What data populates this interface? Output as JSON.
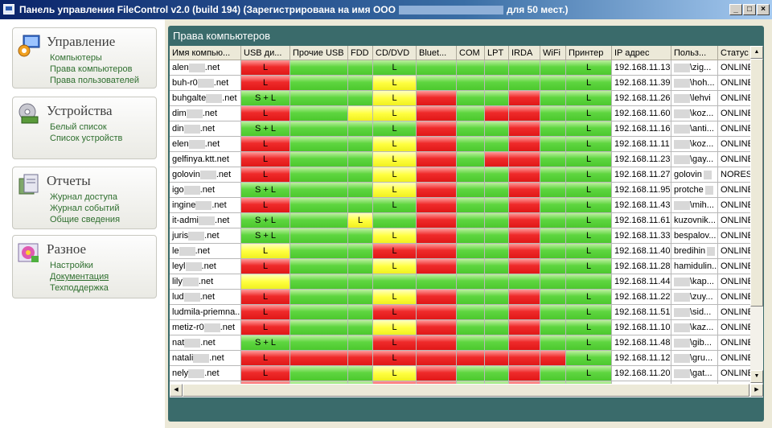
{
  "window": {
    "title_left": "Панель управления FileControl v2.0 (build 194) (Зарегистрирована на имя ООО",
    "title_right": "для 50 мест.)"
  },
  "sidebar": [
    {
      "key": "manage",
      "title": "Управление",
      "icon": "monitor-gear-icon",
      "links": [
        {
          "label": "Компьютеры",
          "u": false
        },
        {
          "label": "Права компьютеров",
          "u": false
        },
        {
          "label": "Права пользователей",
          "u": false
        }
      ]
    },
    {
      "key": "devices",
      "title": "Устройства",
      "icon": "disk-drive-icon",
      "links": [
        {
          "label": "Белый список",
          "u": false
        },
        {
          "label": "Список устройств",
          "u": false
        }
      ]
    },
    {
      "key": "reports",
      "title": "Отчеты",
      "icon": "folder-report-icon",
      "links": [
        {
          "label": "Журнал доступа",
          "u": false
        },
        {
          "label": "Журнал событий",
          "u": false
        },
        {
          "label": "Общие сведения",
          "u": false
        }
      ]
    },
    {
      "key": "misc",
      "title": "Разное",
      "icon": "settings-flower-icon",
      "links": [
        {
          "label": "Настройки",
          "u": false
        },
        {
          "label": "Документация",
          "u": true
        },
        {
          "label": "Техподдержка",
          "u": false
        }
      ]
    }
  ],
  "tab": {
    "label": "Права компьютеров"
  },
  "colors": {
    "allowed": "#4cc82e",
    "denied": "#e01818",
    "readonly": "#f0f020"
  },
  "columns": [
    "Имя компью...",
    "USB ди...",
    "Прочие USB",
    "FDD",
    "CD/DVD",
    "Bluet...",
    "COM",
    "LPT",
    "IRDA",
    "WiFi",
    "Принтер",
    "IP адрес",
    "Польз...",
    "Статус"
  ],
  "rows": [
    {
      "name": "alen",
      "suffix": ".net",
      "usb": [
        "r",
        "L"
      ],
      "ousb": [
        "g",
        ""
      ],
      "fdd": [
        "g",
        ""
      ],
      "cd": [
        "g",
        "L"
      ],
      "bt": [
        "g",
        ""
      ],
      "com": [
        "g",
        ""
      ],
      "lpt": [
        "g",
        ""
      ],
      "irda": [
        "g",
        ""
      ],
      "wifi": [
        "g",
        ""
      ],
      "prn": [
        "g",
        "L"
      ],
      "ip": "192.168.11.13",
      "user": "\\zig...",
      "blur_user": true,
      "status": "ONLINE"
    },
    {
      "name": "buh-r0",
      "suffix": ".net",
      "usb": [
        "r",
        "L"
      ],
      "ousb": [
        "g",
        ""
      ],
      "fdd": [
        "g",
        ""
      ],
      "cd": [
        "y",
        "L"
      ],
      "bt": [
        "g",
        ""
      ],
      "com": [
        "g",
        ""
      ],
      "lpt": [
        "g",
        ""
      ],
      "irda": [
        "g",
        ""
      ],
      "wifi": [
        "g",
        ""
      ],
      "prn": [
        "g",
        "L"
      ],
      "ip": "192.168.11.39",
      "user": "\\hoh...",
      "blur_user": true,
      "status": "ONLINE"
    },
    {
      "name": "buhgalte",
      "suffix": ".net",
      "usb": [
        "g",
        "S + L"
      ],
      "ousb": [
        "g",
        ""
      ],
      "fdd": [
        "g",
        ""
      ],
      "cd": [
        "y",
        "L"
      ],
      "bt": [
        "r",
        ""
      ],
      "com": [
        "g",
        ""
      ],
      "lpt": [
        "g",
        ""
      ],
      "irda": [
        "r",
        ""
      ],
      "wifi": [
        "g",
        ""
      ],
      "prn": [
        "g",
        "L"
      ],
      "ip": "192.168.11.26",
      "user": "\\lehvi",
      "blur_user": true,
      "status": "ONLINE"
    },
    {
      "name": "dim",
      "suffix": ".net",
      "usb": [
        "r",
        "L"
      ],
      "ousb": [
        "g",
        ""
      ],
      "fdd": [
        "y",
        ""
      ],
      "cd": [
        "y",
        "L"
      ],
      "bt": [
        "r",
        ""
      ],
      "com": [
        "g",
        ""
      ],
      "lpt": [
        "r",
        ""
      ],
      "irda": [
        "r",
        ""
      ],
      "wifi": [
        "g",
        ""
      ],
      "prn": [
        "g",
        "L"
      ],
      "ip": "192.168.11.60",
      "user": "\\koz...",
      "blur_user": true,
      "status": "ONLINE"
    },
    {
      "name": "din",
      "suffix": ".net",
      "usb": [
        "g",
        "S + L"
      ],
      "ousb": [
        "g",
        ""
      ],
      "fdd": [
        "g",
        ""
      ],
      "cd": [
        "g",
        "L"
      ],
      "bt": [
        "r",
        ""
      ],
      "com": [
        "g",
        ""
      ],
      "lpt": [
        "g",
        ""
      ],
      "irda": [
        "r",
        ""
      ],
      "wifi": [
        "g",
        ""
      ],
      "prn": [
        "g",
        "L"
      ],
      "ip": "192.168.11.16",
      "user": "\\anti...",
      "blur_user": true,
      "status": "ONLINE"
    },
    {
      "name": "elen",
      "suffix": ".net",
      "usb": [
        "r",
        "L"
      ],
      "ousb": [
        "g",
        ""
      ],
      "fdd": [
        "g",
        ""
      ],
      "cd": [
        "y",
        "L"
      ],
      "bt": [
        "r",
        ""
      ],
      "com": [
        "g",
        ""
      ],
      "lpt": [
        "g",
        ""
      ],
      "irda": [
        "r",
        ""
      ],
      "wifi": [
        "g",
        ""
      ],
      "prn": [
        "g",
        "L"
      ],
      "ip": "192.168.11.11",
      "user": "\\koz...",
      "blur_user": true,
      "status": "ONLINE"
    },
    {
      "name": "gelfinya.ktt.net",
      "suffix": "",
      "usb": [
        "r",
        "L"
      ],
      "ousb": [
        "g",
        ""
      ],
      "fdd": [
        "g",
        ""
      ],
      "cd": [
        "y",
        "L"
      ],
      "bt": [
        "r",
        ""
      ],
      "com": [
        "g",
        ""
      ],
      "lpt": [
        "r",
        ""
      ],
      "irda": [
        "r",
        ""
      ],
      "wifi": [
        "g",
        ""
      ],
      "prn": [
        "g",
        "L"
      ],
      "ip": "192.168.11.23",
      "user": "\\gay...",
      "blur_user": true,
      "status": "ONLINE"
    },
    {
      "name": "golovin",
      "suffix": ".net",
      "usb": [
        "r",
        "L"
      ],
      "ousb": [
        "g",
        ""
      ],
      "fdd": [
        "g",
        ""
      ],
      "cd": [
        "y",
        "L"
      ],
      "bt": [
        "r",
        ""
      ],
      "com": [
        "g",
        ""
      ],
      "lpt": [
        "g",
        ""
      ],
      "irda": [
        "r",
        ""
      ],
      "wifi": [
        "g",
        ""
      ],
      "prn": [
        "g",
        "L"
      ],
      "ip": "192.168.11.27",
      "user": "golovin",
      "blur_user": false,
      "status": "NORESP"
    },
    {
      "name": "igo",
      "suffix": ".net",
      "usb": [
        "g",
        "S + L"
      ],
      "ousb": [
        "g",
        ""
      ],
      "fdd": [
        "g",
        ""
      ],
      "cd": [
        "y",
        "L"
      ],
      "bt": [
        "r",
        ""
      ],
      "com": [
        "g",
        ""
      ],
      "lpt": [
        "g",
        ""
      ],
      "irda": [
        "r",
        ""
      ],
      "wifi": [
        "g",
        ""
      ],
      "prn": [
        "g",
        "L"
      ],
      "ip": "192.168.11.95",
      "user": "protche",
      "blur_user": false,
      "status": "ONLINE"
    },
    {
      "name": "ingine",
      "suffix": ".net",
      "usb": [
        "r",
        "L"
      ],
      "ousb": [
        "g",
        ""
      ],
      "fdd": [
        "g",
        ""
      ],
      "cd": [
        "g",
        "L"
      ],
      "bt": [
        "r",
        ""
      ],
      "com": [
        "g",
        ""
      ],
      "lpt": [
        "g",
        ""
      ],
      "irda": [
        "r",
        ""
      ],
      "wifi": [
        "g",
        ""
      ],
      "prn": [
        "g",
        "L"
      ],
      "ip": "192.168.11.43",
      "user": "\\mih...",
      "blur_user": true,
      "status": "ONLINE"
    },
    {
      "name": "it-admi",
      "suffix": ".net",
      "usb": [
        "g",
        "S + L"
      ],
      "ousb": [
        "g",
        ""
      ],
      "fdd": [
        "y",
        "L"
      ],
      "cd": [
        "g",
        ""
      ],
      "bt": [
        "r",
        ""
      ],
      "com": [
        "g",
        ""
      ],
      "lpt": [
        "g",
        ""
      ],
      "irda": [
        "r",
        ""
      ],
      "wifi": [
        "g",
        ""
      ],
      "prn": [
        "g",
        "L"
      ],
      "ip": "192.168.11.61",
      "user": "kuzovnik...",
      "blur_user": false,
      "status": "ONLINE"
    },
    {
      "name": "juris",
      "suffix": ".net",
      "usb": [
        "g",
        "S + L"
      ],
      "ousb": [
        "g",
        ""
      ],
      "fdd": [
        "g",
        ""
      ],
      "cd": [
        "y",
        "L"
      ],
      "bt": [
        "r",
        ""
      ],
      "com": [
        "g",
        ""
      ],
      "lpt": [
        "g",
        ""
      ],
      "irda": [
        "r",
        ""
      ],
      "wifi": [
        "g",
        ""
      ],
      "prn": [
        "g",
        "L"
      ],
      "ip": "192.168.11.33",
      "user": "bespalov...",
      "blur_user": false,
      "status": "ONLINE"
    },
    {
      "name": "le",
      "suffix": ".net",
      "usb": [
        "y",
        "L"
      ],
      "ousb": [
        "g",
        ""
      ],
      "fdd": [
        "g",
        ""
      ],
      "cd": [
        "r",
        "L"
      ],
      "bt": [
        "r",
        ""
      ],
      "com": [
        "g",
        ""
      ],
      "lpt": [
        "g",
        ""
      ],
      "irda": [
        "r",
        ""
      ],
      "wifi": [
        "g",
        ""
      ],
      "prn": [
        "g",
        "L"
      ],
      "ip": "192.168.11.40",
      "user": "bredihin",
      "blur_user": false,
      "status": "ONLINE"
    },
    {
      "name": "leyl",
      "suffix": ".net",
      "usb": [
        "r",
        "L"
      ],
      "ousb": [
        "g",
        ""
      ],
      "fdd": [
        "g",
        ""
      ],
      "cd": [
        "y",
        "L"
      ],
      "bt": [
        "r",
        ""
      ],
      "com": [
        "g",
        ""
      ],
      "lpt": [
        "g",
        ""
      ],
      "irda": [
        "r",
        ""
      ],
      "wifi": [
        "g",
        ""
      ],
      "prn": [
        "g",
        "L"
      ],
      "ip": "192.168.11.28",
      "user": "hamidulin...",
      "blur_user": false,
      "status": "ONLINE"
    },
    {
      "name": "lily",
      "suffix": ".net",
      "usb": [
        "y",
        ""
      ],
      "ousb": [
        "g",
        ""
      ],
      "fdd": [
        "g",
        ""
      ],
      "cd": [
        "g",
        ""
      ],
      "bt": [
        "g",
        ""
      ],
      "com": [
        "g",
        ""
      ],
      "lpt": [
        "g",
        ""
      ],
      "irda": [
        "g",
        ""
      ],
      "wifi": [
        "g",
        ""
      ],
      "prn": [
        "g",
        ""
      ],
      "ip": "192.168.11.44",
      "user": "\\kap...",
      "blur_user": true,
      "status": "ONLINE"
    },
    {
      "name": "lud",
      "suffix": ".net",
      "usb": [
        "r",
        "L"
      ],
      "ousb": [
        "g",
        ""
      ],
      "fdd": [
        "g",
        ""
      ],
      "cd": [
        "y",
        "L"
      ],
      "bt": [
        "r",
        ""
      ],
      "com": [
        "g",
        ""
      ],
      "lpt": [
        "g",
        ""
      ],
      "irda": [
        "r",
        ""
      ],
      "wifi": [
        "g",
        ""
      ],
      "prn": [
        "g",
        "L"
      ],
      "ip": "192.168.11.22",
      "user": "\\zuy...",
      "blur_user": true,
      "status": "ONLINE"
    },
    {
      "name": "ludmila-priemna...",
      "suffix": "",
      "usb": [
        "r",
        "L"
      ],
      "ousb": [
        "g",
        ""
      ],
      "fdd": [
        "g",
        ""
      ],
      "cd": [
        "r",
        "L"
      ],
      "bt": [
        "r",
        ""
      ],
      "com": [
        "g",
        ""
      ],
      "lpt": [
        "g",
        ""
      ],
      "irda": [
        "r",
        ""
      ],
      "wifi": [
        "g",
        ""
      ],
      "prn": [
        "g",
        "L"
      ],
      "ip": "192.168.11.51",
      "user": "\\sid...",
      "blur_user": true,
      "status": "ONLINE"
    },
    {
      "name": "metiz-r0",
      "suffix": ".net",
      "usb": [
        "r",
        "L"
      ],
      "ousb": [
        "g",
        ""
      ],
      "fdd": [
        "g",
        ""
      ],
      "cd": [
        "y",
        "L"
      ],
      "bt": [
        "r",
        ""
      ],
      "com": [
        "g",
        ""
      ],
      "lpt": [
        "g",
        ""
      ],
      "irda": [
        "r",
        ""
      ],
      "wifi": [
        "g",
        ""
      ],
      "prn": [
        "g",
        "L"
      ],
      "ip": "192.168.11.10",
      "user": "\\kaz...",
      "blur_user": true,
      "status": "ONLINE"
    },
    {
      "name": "nat",
      "suffix": ".net",
      "usb": [
        "g",
        "S + L"
      ],
      "ousb": [
        "g",
        ""
      ],
      "fdd": [
        "g",
        ""
      ],
      "cd": [
        "r",
        "L"
      ],
      "bt": [
        "r",
        ""
      ],
      "com": [
        "g",
        ""
      ],
      "lpt": [
        "g",
        ""
      ],
      "irda": [
        "r",
        ""
      ],
      "wifi": [
        "g",
        ""
      ],
      "prn": [
        "g",
        "L"
      ],
      "ip": "192.168.11.48",
      "user": "\\gib...",
      "blur_user": true,
      "status": "ONLINE"
    },
    {
      "name": "natali",
      "suffix": ".net",
      "usb": [
        "r",
        "L"
      ],
      "ousb": [
        "r",
        ""
      ],
      "fdd": [
        "r",
        ""
      ],
      "cd": [
        "r",
        "L"
      ],
      "bt": [
        "r",
        ""
      ],
      "com": [
        "r",
        ""
      ],
      "lpt": [
        "r",
        ""
      ],
      "irda": [
        "r",
        ""
      ],
      "wifi": [
        "r",
        ""
      ],
      "prn": [
        "g",
        "L"
      ],
      "ip": "192.168.11.12",
      "user": "\\gru...",
      "blur_user": true,
      "status": "ONLINE"
    },
    {
      "name": "nely",
      "suffix": ".net",
      "usb": [
        "r",
        "L"
      ],
      "ousb": [
        "g",
        ""
      ],
      "fdd": [
        "g",
        ""
      ],
      "cd": [
        "y",
        "L"
      ],
      "bt": [
        "r",
        ""
      ],
      "com": [
        "g",
        ""
      ],
      "lpt": [
        "g",
        ""
      ],
      "irda": [
        "r",
        ""
      ],
      "wifi": [
        "g",
        ""
      ],
      "prn": [
        "g",
        "L"
      ],
      "ip": "192.168.11.20",
      "user": "\\gat...",
      "blur_user": true,
      "status": "ONLINE"
    },
    {
      "name": "",
      "suffix": "",
      "usb": [
        "r",
        ""
      ],
      "ousb": [
        "g",
        ""
      ],
      "fdd": [
        "g",
        ""
      ],
      "cd": [
        "r",
        ""
      ],
      "bt": [
        "r",
        ""
      ],
      "com": [
        "g",
        ""
      ],
      "lpt": [
        "g",
        ""
      ],
      "irda": [
        "r",
        ""
      ],
      "wifi": [
        "g",
        ""
      ],
      "prn": [
        "g",
        ""
      ],
      "ip": "",
      "user": "",
      "blur_user": false,
      "status": ""
    }
  ]
}
